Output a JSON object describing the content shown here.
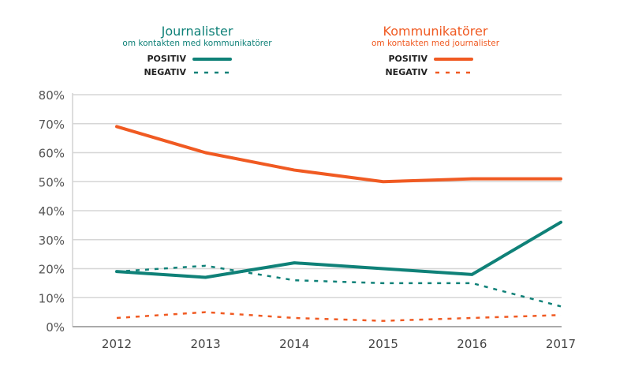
{
  "chart_data": {
    "type": "line",
    "categories": [
      "2012",
      "2013",
      "2014",
      "2015",
      "2016",
      "2017"
    ],
    "ylim": [
      0,
      80
    ],
    "yticks": [
      "0%",
      "10%",
      "20%",
      "30%",
      "40%",
      "50%",
      "60%",
      "70%",
      "80%"
    ],
    "grid": true,
    "groups": [
      {
        "title": "Journalister",
        "subtitle": "om kontakten med kommunikatörer",
        "color": "#0f8178"
      },
      {
        "title": "Kommunikatörer",
        "subtitle": "om kontakten med journalister",
        "color": "#f05a22"
      }
    ],
    "legend_labels": {
      "positive": "POSITIV",
      "negative": "NEGATIV"
    },
    "series": [
      {
        "name": "Journalister POSITIV",
        "group": 0,
        "style": "solid",
        "color": "#0f8178",
        "values": [
          19,
          17,
          22,
          20,
          18,
          36
        ]
      },
      {
        "name": "Journalister NEGATIV",
        "group": 0,
        "style": "dashed",
        "color": "#0f8178",
        "values": [
          19,
          21,
          16,
          15,
          15,
          7
        ]
      },
      {
        "name": "Kommunikatörer POSITIV",
        "group": 1,
        "style": "solid",
        "color": "#f05a22",
        "values": [
          69,
          60,
          54,
          50,
          51,
          51
        ]
      },
      {
        "name": "Kommunikatörer NEGATIV",
        "group": 1,
        "style": "dashed",
        "color": "#f05a22",
        "values": [
          3,
          5,
          3,
          2,
          3,
          4
        ]
      }
    ]
  }
}
